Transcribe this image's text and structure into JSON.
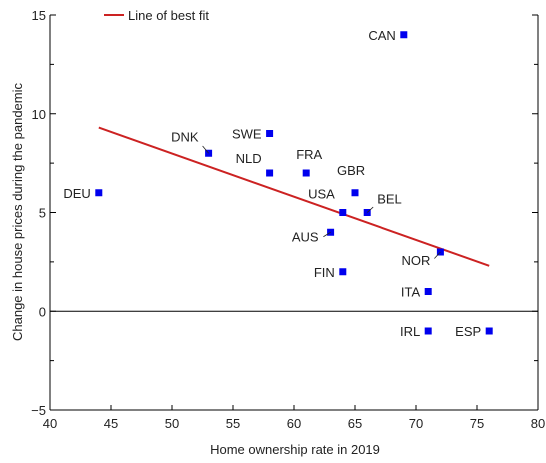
{
  "chart_data": {
    "type": "scatter",
    "xlabel": "Home ownership rate in 2019",
    "ylabel": "Change in house prices during the pandemic",
    "xlim": [
      40,
      80
    ],
    "ylim": [
      -5,
      15
    ],
    "xticks": [
      40,
      45,
      50,
      55,
      60,
      65,
      70,
      75,
      80
    ],
    "yticks": [
      -5,
      0,
      5,
      10,
      15
    ],
    "yticks_minor": [
      -2.5,
      2.5,
      7.5,
      12.5
    ],
    "zero_line": true,
    "grid": false,
    "legend": {
      "placement": "top-left",
      "entries": [
        "Line of best fit"
      ]
    },
    "colors": {
      "points": "#0000ee",
      "fit_line": "#cc2222",
      "axis": "#000000"
    },
    "points": [
      {
        "label": "CAN",
        "x": 69,
        "y": 14
      },
      {
        "label": "DNK",
        "x": 53,
        "y": 8
      },
      {
        "label": "SWE",
        "x": 58,
        "y": 9
      },
      {
        "label": "NLD",
        "x": 58,
        "y": 7
      },
      {
        "label": "FRA",
        "x": 61,
        "y": 7
      },
      {
        "label": "GBR",
        "x": 65,
        "y": 6
      },
      {
        "label": "DEU",
        "x": 44,
        "y": 6
      },
      {
        "label": "USA",
        "x": 64,
        "y": 5
      },
      {
        "label": "BEL",
        "x": 66,
        "y": 5
      },
      {
        "label": "AUS",
        "x": 63,
        "y": 4
      },
      {
        "label": "NOR",
        "x": 72,
        "y": 3
      },
      {
        "label": "FIN",
        "x": 64,
        "y": 2
      },
      {
        "label": "ITA",
        "x": 71,
        "y": 1
      },
      {
        "label": "IRL",
        "x": 71,
        "y": -1
      },
      {
        "label": "ESP",
        "x": 76,
        "y": -1
      }
    ],
    "fit_line": {
      "name": "Line of best fit",
      "x": [
        44,
        76
      ],
      "y": [
        9.3,
        2.3
      ]
    }
  }
}
